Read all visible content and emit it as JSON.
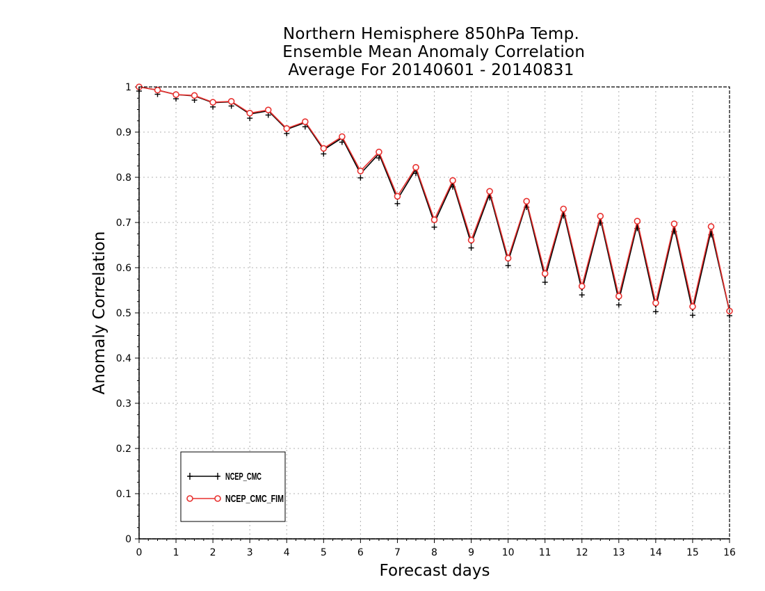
{
  "chart_data": {
    "type": "line",
    "title": [
      "Northern Hemisphere 850hPa Temp.",
      " Ensemble Mean Anomaly Correlation",
      "Average For 20140601 - 20140831"
    ],
    "xlabel": "Forecast days",
    "ylabel": "Anomaly Correlation",
    "xlim": [
      0,
      16
    ],
    "ylim": [
      0,
      1
    ],
    "x_ticks": [
      "0",
      "1",
      "2",
      "3",
      "4",
      "5",
      "6",
      "7",
      "8",
      "9",
      "10",
      "11",
      "12",
      "13",
      "14",
      "15",
      "16"
    ],
    "y_ticks": [
      "0",
      "0.1",
      "0.2",
      "0.3",
      "0.4",
      "0.5",
      "0.6",
      "0.7",
      "0.8",
      "0.9",
      "1"
    ],
    "grid": true,
    "legend_position": "bottom-left",
    "x": [
      0,
      0.5,
      1,
      1.5,
      2,
      2.5,
      3,
      3.5,
      4,
      4.5,
      5,
      5.5,
      6,
      6.5,
      7,
      7.5,
      8,
      8.5,
      9,
      9.5,
      10,
      10.5,
      11,
      11.5,
      12,
      12.5,
      13,
      13.5,
      14,
      14.5,
      15,
      15.5,
      16
    ],
    "series": [
      {
        "name": "NCEP_CMC",
        "color": "#000000",
        "marker": "plus",
        "values": [
          1.0,
          0.993,
          0.983,
          0.98,
          0.965,
          0.967,
          0.94,
          0.947,
          0.906,
          0.921,
          0.861,
          0.887,
          0.808,
          0.852,
          0.751,
          0.818,
          0.699,
          0.788,
          0.653,
          0.764,
          0.614,
          0.743,
          0.577,
          0.724,
          0.549,
          0.708,
          0.527,
          0.696,
          0.512,
          0.689,
          0.504,
          0.682,
          0.503
        ]
      },
      {
        "name": "NCEP_CMC_FIM",
        "color": "#e8312f",
        "marker": "circle",
        "values": [
          1.0,
          0.993,
          0.983,
          0.981,
          0.966,
          0.968,
          0.942,
          0.949,
          0.908,
          0.923,
          0.864,
          0.89,
          0.814,
          0.856,
          0.758,
          0.822,
          0.706,
          0.793,
          0.661,
          0.769,
          0.621,
          0.747,
          0.587,
          0.73,
          0.559,
          0.714,
          0.537,
          0.703,
          0.522,
          0.697,
          0.514,
          0.691,
          0.504
        ]
      }
    ]
  }
}
